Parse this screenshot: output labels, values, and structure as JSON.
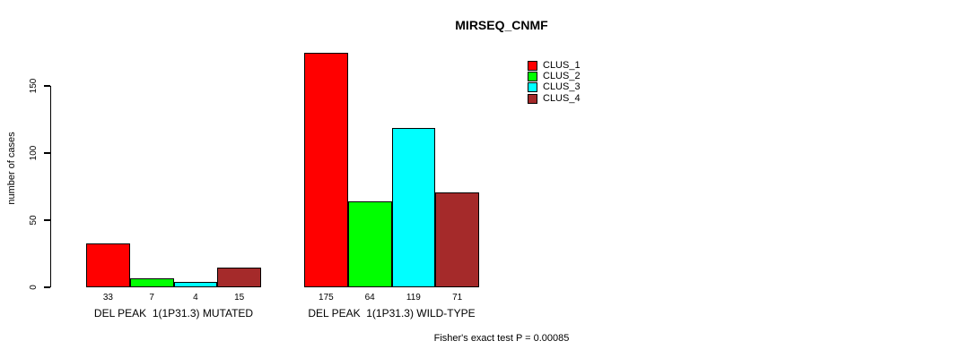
{
  "chart_data": {
    "type": "bar",
    "title": "MIRSEQ_CNMF",
    "ylabel": "number of cases",
    "xlabel": "",
    "categories": [
      "DEL PEAK  1(1P31.3) MUTATED",
      "DEL PEAK  1(1P31.3) WILD-TYPE"
    ],
    "series": [
      {
        "name": "CLUS_1",
        "color": "#ff0000",
        "values": [
          33,
          175
        ]
      },
      {
        "name": "CLUS_2",
        "color": "#00ff00",
        "values": [
          7,
          64
        ]
      },
      {
        "name": "CLUS_3",
        "color": "#00ffff",
        "values": [
          4,
          119
        ]
      },
      {
        "name": "CLUS_4",
        "color": "#a52a2a",
        "values": [
          15,
          71
        ]
      }
    ],
    "yticks": [
      0,
      50,
      100,
      150
    ],
    "ylim": [
      0,
      180
    ],
    "grid": false,
    "bar_value_labels_shown": true,
    "legend_position": "top-right",
    "annotation": "Fisher's exact test P = 0.00085"
  },
  "colors": {
    "axis": "#000000",
    "text": "#000000",
    "background": "#ffffff"
  }
}
